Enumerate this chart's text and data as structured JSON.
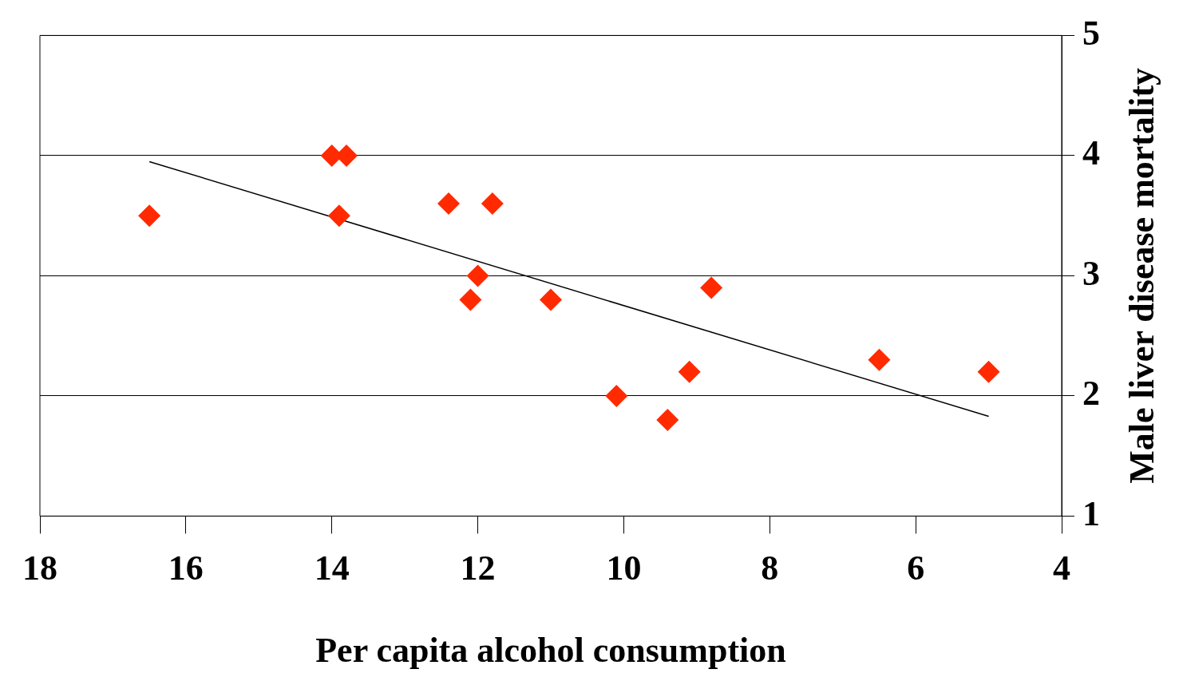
{
  "chart_data": {
    "type": "scatter",
    "xlabel": "Per capita alcohol consumption",
    "ylabel": "Male liver disease mortality",
    "xlim": [
      18,
      4
    ],
    "xticks": [
      18,
      16,
      14,
      12,
      10,
      8,
      6,
      4
    ],
    "ylim": [
      1,
      5
    ],
    "yticks": [
      1,
      2,
      3,
      4,
      5
    ],
    "grid": "y",
    "marker": "diamond",
    "series": [
      {
        "color": "#ff2a00",
        "x": [
          16.5,
          14.0,
          13.8,
          13.9,
          12.4,
          11.8,
          12.0,
          12.1,
          11.0,
          8.8,
          10.1,
          9.4,
          9.1,
          6.5,
          5.0
        ],
        "values": [
          3.5,
          4.0,
          4.0,
          3.5,
          3.6,
          3.6,
          3.0,
          2.8,
          2.8,
          2.9,
          2.0,
          1.8,
          2.2,
          2.3,
          2.2
        ]
      },
      {
        "type": "line",
        "color": "#000000",
        "marker": "none",
        "line_style": "solid",
        "x": [
          16.5,
          5.0
        ],
        "values": [
          3.95,
          1.83
        ]
      }
    ]
  }
}
